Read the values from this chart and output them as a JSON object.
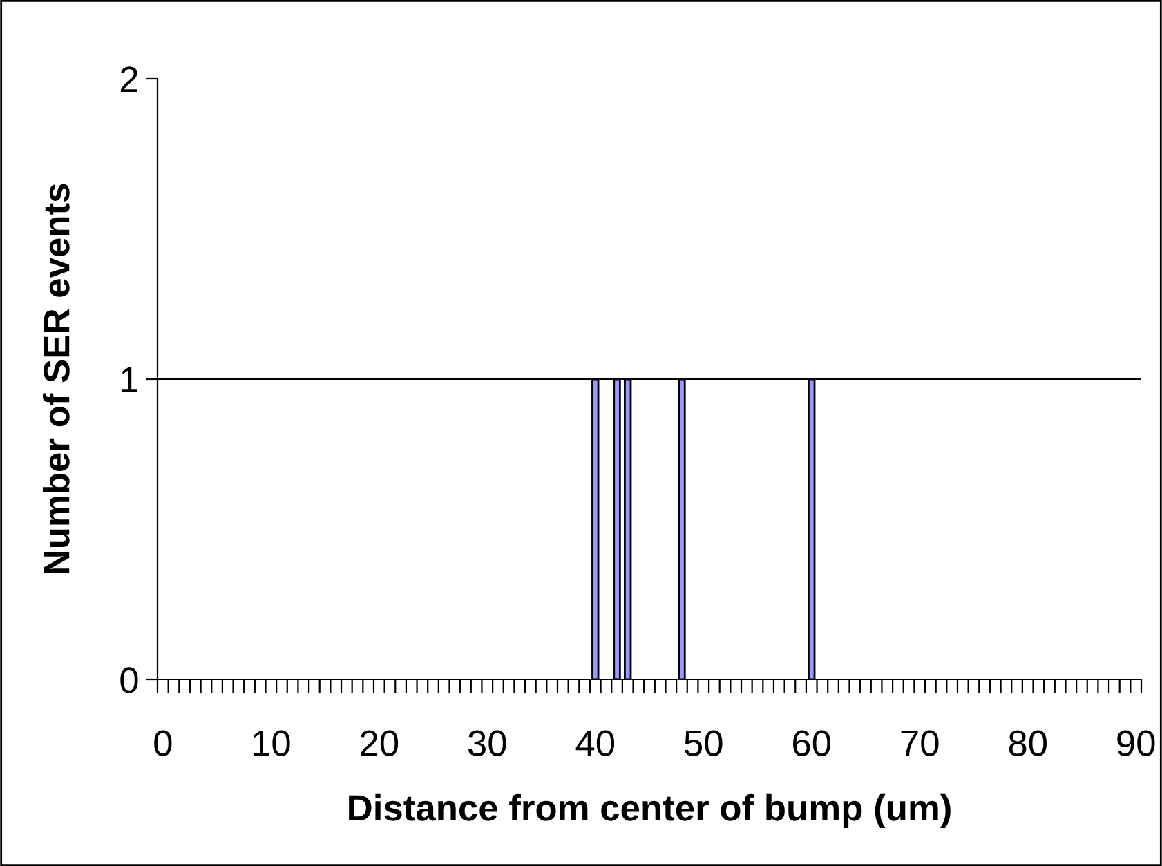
{
  "chart_data": {
    "type": "bar",
    "xlabel": "Distance from center of bump (um)",
    "ylabel": "Number of SER events",
    "categories": [
      "0",
      null,
      null,
      null,
      null,
      null,
      null,
      null,
      null,
      null,
      "10",
      null,
      null,
      null,
      null,
      null,
      null,
      null,
      null,
      null,
      "20",
      null,
      null,
      null,
      null,
      null,
      null,
      null,
      null,
      null,
      "30",
      null,
      null,
      null,
      null,
      null,
      null,
      null,
      null,
      null,
      "40",
      null,
      null,
      null,
      null,
      null,
      null,
      null,
      null,
      null,
      "50",
      null,
      null,
      null,
      null,
      null,
      null,
      null,
      null,
      null,
      "60",
      null,
      null,
      null,
      null,
      null,
      null,
      null,
      null,
      null,
      "70",
      null,
      null,
      null,
      null,
      null,
      null,
      null,
      null,
      null,
      "80",
      null,
      null,
      null,
      null,
      null,
      null,
      null,
      null,
      null,
      "90"
    ],
    "values": [
      0,
      0,
      0,
      0,
      0,
      0,
      0,
      0,
      0,
      0,
      0,
      0,
      0,
      0,
      0,
      0,
      0,
      0,
      0,
      0,
      0,
      0,
      0,
      0,
      0,
      0,
      0,
      0,
      0,
      0,
      0,
      0,
      0,
      0,
      0,
      0,
      0,
      0,
      0,
      0,
      1,
      0,
      1,
      1,
      0,
      0,
      0,
      0,
      1,
      0,
      0,
      0,
      0,
      0,
      0,
      0,
      0,
      0,
      0,
      0,
      1,
      0,
      0,
      0,
      0,
      0,
      0,
      0,
      0,
      0,
      0,
      0,
      0,
      0,
      0,
      0,
      0,
      0,
      0,
      0,
      0,
      0,
      0,
      0,
      0,
      0,
      0,
      0,
      0,
      0,
      0
    ],
    "color": "#9999ff",
    "ylim": [
      0,
      2
    ],
    "yticks": [
      0,
      1,
      2
    ],
    "grid": "y",
    "legend": false
  }
}
